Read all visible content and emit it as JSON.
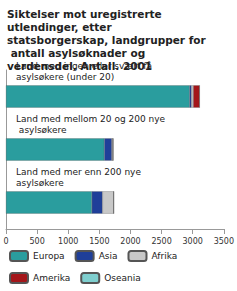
{
  "chart_data": {
    "type": "bar",
    "orientation": "horizontal",
    "stacked": true,
    "title": "Siktelser mot uregistrerte utlendinger, etter statsborgerskap, landgrupper for antall asylsøknader og verdensdel. Antall. 2001",
    "categories": [
      "Land med ingen eller svært få asylsøkere (under 20)",
      "Land med mellom 20 og 200 nye asylsøkere",
      "Land med mer enn 200 nye asylsøkere"
    ],
    "series": [
      {
        "name": "Europa",
        "color": "#2a9d9e",
        "values": [
          2950,
          1580,
          1380
        ]
      },
      {
        "name": "Asia",
        "color": "#1f3f99",
        "values": [
          30,
          120,
          170
        ]
      },
      {
        "name": "Afrika",
        "color": "#c8c8c8",
        "values": [
          30,
          20,
          180
        ]
      },
      {
        "name": "Amerika",
        "color": "#a4161a",
        "values": [
          100,
          0,
          0
        ]
      },
      {
        "name": "Oseania",
        "color": "#7fcfcf",
        "values": [
          0,
          0,
          0
        ]
      }
    ],
    "xlim": [
      0,
      3500
    ],
    "xticks": [
      0,
      500,
      1000,
      1500,
      2000,
      2500,
      3000,
      3500
    ],
    "grid": false,
    "legend": "bottom"
  }
}
